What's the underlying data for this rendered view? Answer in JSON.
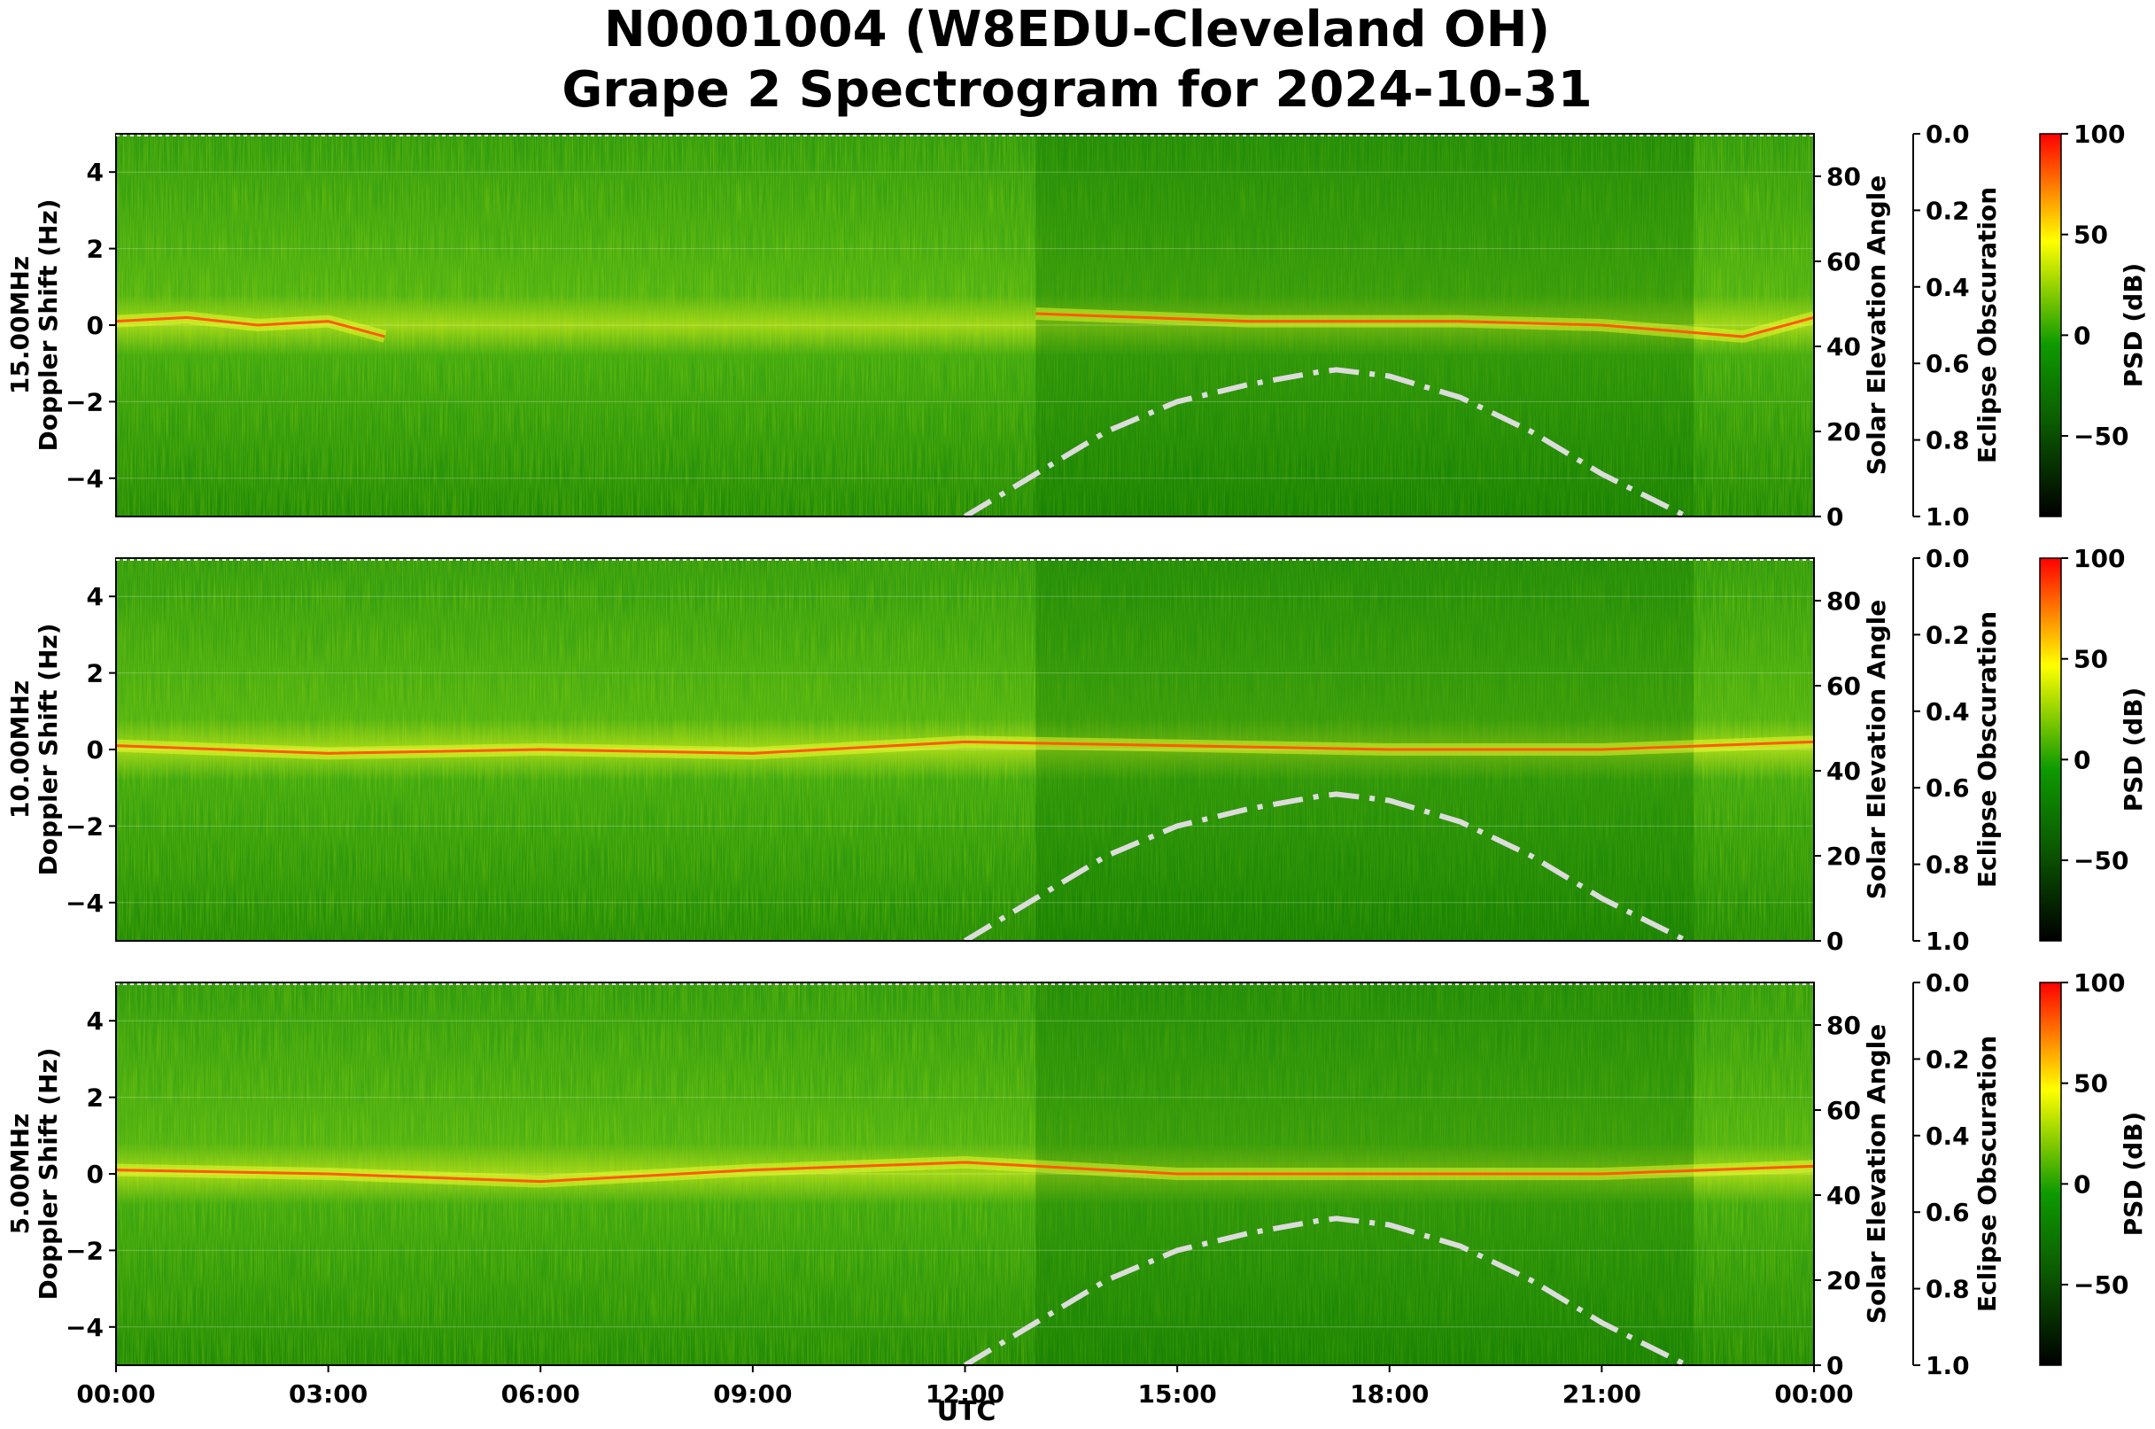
{
  "chart_data": {
    "type": "heatmap",
    "title_line1": "N0001004 (W8EDU-Cleveland OH)",
    "title_line2": "Grape 2 Spectrogram for 2024-10-31",
    "xlabel": "UTC",
    "x_ticks": [
      "00:00",
      "03:00",
      "06:00",
      "09:00",
      "12:00",
      "15:00",
      "18:00",
      "21:00",
      "00:00"
    ],
    "x_range_hours": [
      0,
      24
    ],
    "left_axis_label": "Doppler Shift (Hz)",
    "left_ticks": [
      4,
      2,
      0,
      -2,
      -4
    ],
    "left_range": [
      -5,
      5
    ],
    "right_axis_label": "Solar Elevation Angle",
    "right_ticks": [
      80,
      60,
      40,
      20,
      0
    ],
    "right_range": [
      0,
      90
    ],
    "eclipse_axis_label": "Eclipse Obscuration",
    "eclipse_ticks": [
      "0.0",
      "0.2",
      "0.4",
      "0.6",
      "0.8",
      "1.0"
    ],
    "colorbar_label": "PSD (dB)",
    "colorbar_ticks": [
      "100",
      "50",
      "0",
      "−50"
    ],
    "colorbar_range": [
      -90,
      100
    ],
    "colors": {
      "low": "#0d2a00",
      "mid": "#0b7a00",
      "high_green": "#7fc800",
      "yellow": "#ffff00",
      "red": "#ff0000",
      "elevation_curve": "#dcdcdc"
    },
    "solar_elevation": {
      "time_hours": [
        12,
        13,
        14,
        15,
        16,
        17,
        17.25,
        18,
        19,
        20,
        21,
        22.2
      ],
      "elevation_deg": [
        0,
        10,
        20,
        27,
        31,
        34,
        34.5,
        33,
        28,
        20,
        10,
        0
      ]
    },
    "panels": [
      {
        "frequency_label": "15.00MHz",
        "carrier_trace_hz": {
          "time_hours": [
            0,
            1,
            2,
            3,
            3.8
          ],
          "doppler_hz": [
            0.1,
            0.2,
            0.0,
            0.1,
            -0.3
          ]
        },
        "carrier_trace_late_hz": {
          "time_hours": [
            13,
            16,
            19,
            21,
            23,
            24
          ],
          "doppler_hz": [
            0.3,
            0.1,
            0.1,
            0.0,
            -0.3,
            0.2
          ]
        }
      },
      {
        "frequency_label": "10.00MHz",
        "carrier_trace_hz": {
          "time_hours": [
            0,
            3,
            6,
            9,
            12,
            15,
            18,
            21,
            24
          ],
          "doppler_hz": [
            0.1,
            -0.1,
            0.0,
            -0.1,
            0.2,
            0.1,
            0.0,
            0.0,
            0.2
          ]
        }
      },
      {
        "frequency_label": "5.00MHz",
        "carrier_trace_hz": {
          "time_hours": [
            0,
            3,
            6,
            9,
            12,
            15,
            18,
            21,
            24
          ],
          "doppler_hz": [
            0.1,
            0.0,
            -0.2,
            0.1,
            0.3,
            0.0,
            0.0,
            0.0,
            0.2
          ]
        }
      }
    ]
  }
}
